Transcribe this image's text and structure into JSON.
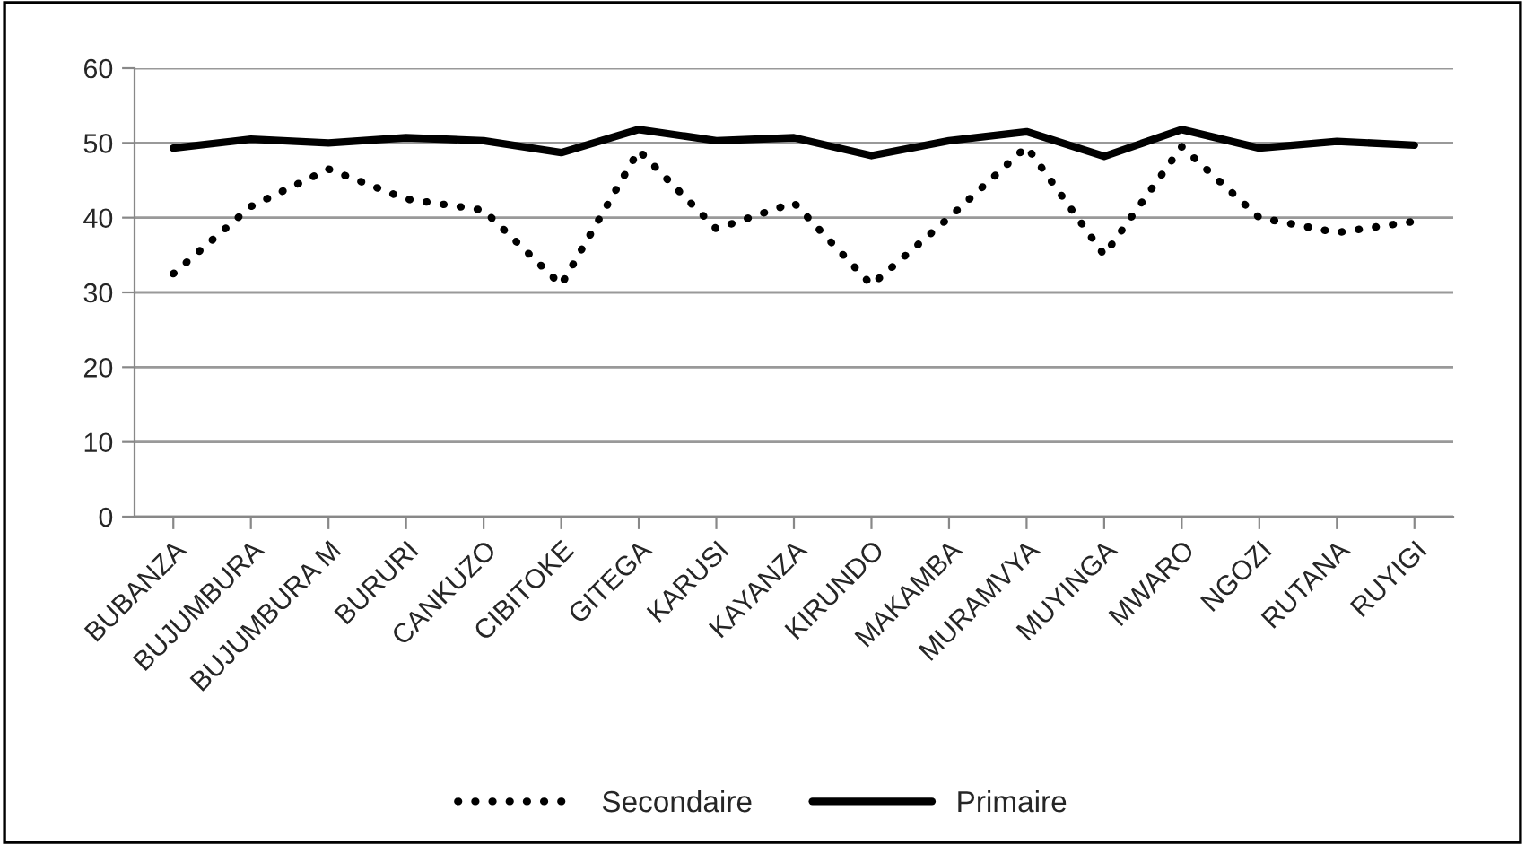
{
  "chart_data": {
    "type": "line",
    "categories": [
      "BUBANZA",
      "BUJUMBURA",
      "BUJUMBURA M",
      "BURURI",
      "CANKUZO",
      "CIBITOKE",
      "GITEGA",
      "KARUSI",
      "KAYANZA",
      "KIRUNDO",
      "MAKAMBA",
      "MURAMVYA",
      "MUYINGA",
      "MWARO",
      "NGOZI",
      "RUTANA",
      "RUYIGI"
    ],
    "series": [
      {
        "name": "Secondaire",
        "color": "#000000",
        "line_style": "dotted",
        "values": [
          32.5,
          41.5,
          46.5,
          42.5,
          41,
          31,
          49,
          38.5,
          42,
          31,
          40,
          49.5,
          35,
          49.5,
          40,
          38,
          39.5
        ]
      },
      {
        "name": "Primaire",
        "color": "#000000",
        "line_style": "solid",
        "values": [
          49.3,
          50.5,
          50,
          50.7,
          50.3,
          48.7,
          51.8,
          50.3,
          50.7,
          48.3,
          50.3,
          51.5,
          48.2,
          51.8,
          49.3,
          50.2,
          49.7
        ]
      }
    ],
    "ylim": [
      0,
      60
    ],
    "yticks": [
      0,
      10,
      20,
      30,
      40,
      50,
      60
    ],
    "grid": "y",
    "legend": "bottom"
  }
}
